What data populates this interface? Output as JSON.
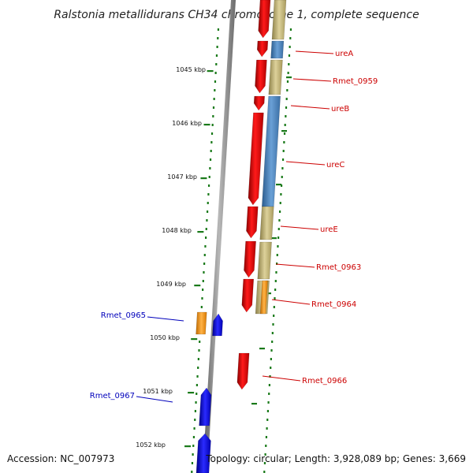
{
  "title": "Ralstonia metallidurans CH34 chromosome 1, complete sequence",
  "accession": "Accession: NC_007973",
  "topology": "Topology: circular; Length: 3,928,089 bp; Genes: 3,669",
  "kbp_labels": [
    "1045 kbp",
    "1046 kbp",
    "1047 kbp",
    "1048 kbp",
    "1049 kbp",
    "1050 kbp",
    "1051 kbp",
    "1052 kbp"
  ],
  "gene_labels": {
    "forward": [
      "ureA",
      "Rmet_0959",
      "ureB",
      "ureC",
      "ureE",
      "Rmet_0963",
      "Rmet_0964",
      "Rmet_0966"
    ],
    "reverse": [
      "Rmet_0965",
      "Rmet_0967"
    ]
  },
  "colors": {
    "gene_red": "#ee0000",
    "cog_blue": "#4f86bf",
    "cog_khaki": "#c4b77a",
    "cog_orange": "#ff9900",
    "gene_blue": "#0000ee",
    "tick_green": "#1a7a1a",
    "backbone": "#8c8c8c"
  }
}
